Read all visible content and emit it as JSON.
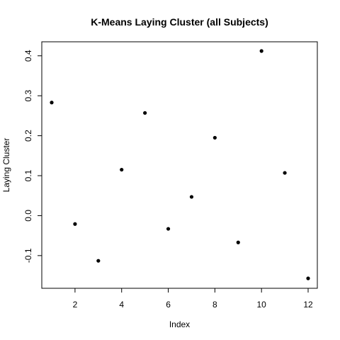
{
  "chart_data": {
    "type": "scatter",
    "title": "K-Means Laying Cluster (all Subjects)",
    "xlabel": "Index",
    "ylabel": "Laying Cluster",
    "xlim": [
      1,
      12
    ],
    "ylim": [
      -0.157,
      0.412
    ],
    "x_ticks": [
      2,
      4,
      6,
      8,
      10,
      12
    ],
    "y_ticks": [
      -0.1,
      0.0,
      0.1,
      0.2,
      0.3,
      0.4
    ],
    "y_tick_labels": [
      "-0.1",
      "0.0",
      "0.1",
      "0.2",
      "0.3",
      "0.4"
    ],
    "grid": false,
    "series": [
      {
        "x": [
          1,
          2,
          3,
          4,
          5,
          6,
          7,
          8,
          9,
          10,
          11,
          12
        ],
        "y": [
          0.283,
          -0.021,
          -0.113,
          0.115,
          0.257,
          -0.033,
          0.047,
          0.195,
          -0.067,
          0.412,
          0.107,
          -0.157
        ],
        "color": "#000000",
        "marker": "filled-circle"
      }
    ]
  }
}
